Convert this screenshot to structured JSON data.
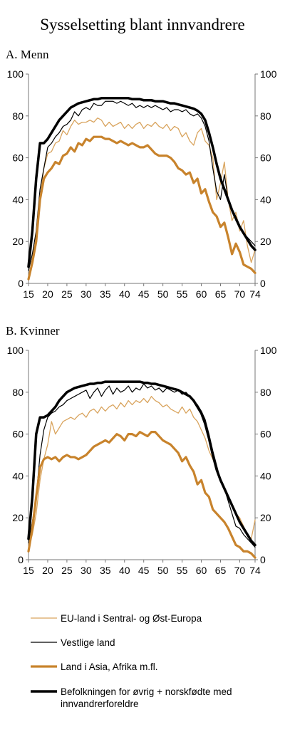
{
  "title": "Sysselsetting blant innvandrere",
  "colors": {
    "eu": "#d9a45e",
    "vest": "#000000",
    "asia": "#c8832c",
    "befolkning": "#000000"
  },
  "legend": [
    {
      "key": "eu",
      "label": "EU-land i Sentral- og Øst-Europa"
    },
    {
      "key": "vest",
      "label": "Vestlige land"
    },
    {
      "key": "asia",
      "label": "Land i Asia, Afrika m.fl."
    },
    {
      "key": "befolkning",
      "label_lines": [
        "Befolkningen for øvrig + norskfødte med",
        "innvandrerforeldre"
      ]
    }
  ],
  "chart_data": [
    {
      "type": "line",
      "title": "A.  Menn",
      "x": [
        15,
        16,
        17,
        18,
        19,
        20,
        21,
        22,
        23,
        24,
        25,
        26,
        27,
        28,
        29,
        30,
        31,
        32,
        33,
        34,
        35,
        36,
        37,
        38,
        39,
        40,
        41,
        42,
        43,
        44,
        45,
        46,
        47,
        48,
        49,
        50,
        51,
        52,
        53,
        54,
        55,
        56,
        57,
        58,
        59,
        60,
        61,
        62,
        63,
        64,
        65,
        66,
        67,
        68,
        69,
        70,
        71,
        72,
        73,
        74
      ],
      "xticks": [
        15,
        20,
        25,
        30,
        35,
        40,
        45,
        50,
        55,
        60,
        65,
        70,
        74
      ],
      "yticks": [
        0,
        20,
        40,
        60,
        80,
        100
      ],
      "ylim": [
        0,
        100
      ],
      "xlim": [
        15,
        74
      ],
      "series": [
        {
          "key": "eu",
          "name": "EU-land i Sentral- og Øst-Europa",
          "values": [
            3,
            10,
            22,
            40,
            55,
            62,
            63,
            67,
            68,
            73,
            71,
            75,
            78,
            76,
            77,
            77,
            78,
            77,
            79,
            78,
            75,
            77,
            75,
            76,
            77,
            74,
            76,
            74,
            76,
            77,
            74,
            76,
            75,
            77,
            75,
            74,
            76,
            73,
            75,
            74,
            70,
            72,
            68,
            66,
            72,
            74,
            68,
            66,
            60,
            40,
            48,
            58,
            40,
            30,
            34,
            25,
            30,
            18,
            10,
            16
          ]
        },
        {
          "key": "vest",
          "name": "Vestlige land",
          "values": [
            6,
            14,
            25,
            45,
            55,
            65,
            67,
            70,
            72,
            75,
            76,
            78,
            82,
            80,
            83,
            84,
            83,
            86,
            85,
            85,
            87,
            87,
            87,
            86,
            87,
            86,
            85,
            86,
            84,
            85,
            84,
            85,
            84,
            85,
            84,
            83,
            84,
            82,
            83,
            83,
            82,
            83,
            81,
            80,
            81,
            79,
            75,
            68,
            55,
            44,
            40,
            52,
            40,
            35,
            30,
            27,
            24,
            22,
            20,
            18
          ]
        },
        {
          "key": "asia",
          "name": "Land i Asia, Afrika m.fl.",
          "values": [
            2,
            10,
            20,
            40,
            50,
            53,
            55,
            58,
            57,
            61,
            62,
            65,
            63,
            67,
            66,
            69,
            68,
            70,
            70,
            70,
            69,
            69,
            68,
            67,
            68,
            67,
            66,
            67,
            66,
            65,
            65,
            66,
            64,
            62,
            61,
            61,
            61,
            60,
            58,
            55,
            54,
            52,
            53,
            48,
            50,
            43,
            45,
            39,
            34,
            32,
            27,
            29,
            22,
            14,
            19,
            15,
            9,
            8,
            7,
            5
          ]
        },
        {
          "key": "befolkning",
          "name": "Befolkningen for øvrig + norskfødte med innvandrerforeldre",
          "values": [
            8,
            25,
            50,
            67,
            67,
            69,
            72,
            75,
            78,
            80,
            82,
            84,
            85,
            86,
            86.5,
            87,
            87.5,
            88,
            88,
            88.5,
            88.5,
            88.5,
            88.5,
            88.5,
            88.5,
            88.5,
            88.5,
            88,
            88,
            88,
            87.5,
            87.5,
            87.5,
            87,
            87,
            87,
            86.5,
            86,
            86,
            85.5,
            85,
            84.5,
            84,
            83.5,
            82.5,
            81,
            78,
            72,
            65,
            57,
            50,
            45,
            40,
            35,
            31,
            27,
            24,
            21,
            18,
            16
          ]
        }
      ]
    },
    {
      "type": "line",
      "title": "B.  Kvinner",
      "x": [
        15,
        16,
        17,
        18,
        19,
        20,
        21,
        22,
        23,
        24,
        25,
        26,
        27,
        28,
        29,
        30,
        31,
        32,
        33,
        34,
        35,
        36,
        37,
        38,
        39,
        40,
        41,
        42,
        43,
        44,
        45,
        46,
        47,
        48,
        49,
        50,
        51,
        52,
        53,
        54,
        55,
        56,
        57,
        58,
        59,
        60,
        61,
        62,
        63,
        64,
        65,
        66,
        67,
        68,
        69,
        70,
        71,
        72,
        73,
        74
      ],
      "xticks": [
        15,
        20,
        25,
        30,
        35,
        40,
        45,
        50,
        55,
        60,
        65,
        70,
        74
      ],
      "yticks": [
        0,
        20,
        40,
        60,
        80,
        100
      ],
      "ylim": [
        0,
        100
      ],
      "xlim": [
        15,
        74
      ],
      "series": [
        {
          "key": "eu",
          "name": "EU-land i Sentral- og Øst-Europa",
          "values": [
            5,
            12,
            22,
            38,
            48,
            55,
            66,
            60,
            63,
            66,
            67,
            68,
            67,
            69,
            70,
            68,
            71,
            72,
            70,
            73,
            71,
            73,
            74,
            72,
            75,
            73,
            76,
            74,
            76,
            75,
            77,
            75,
            78,
            76,
            75,
            73,
            74,
            72,
            71,
            70,
            73,
            70,
            72,
            68,
            66,
            62,
            58,
            52,
            48,
            44,
            38,
            33,
            30,
            26,
            22,
            20,
            16,
            12,
            10,
            19
          ]
        },
        {
          "key": "vest",
          "name": "Vestlige land",
          "values": [
            8,
            18,
            30,
            50,
            62,
            68,
            70,
            71,
            73,
            74,
            76,
            77,
            78,
            79,
            80,
            81,
            77,
            80,
            82,
            78,
            81,
            83,
            79,
            82,
            80,
            81,
            83,
            80,
            82,
            81,
            84,
            82,
            83,
            81,
            82,
            80,
            82,
            81,
            80,
            81,
            79,
            80,
            78,
            76,
            74,
            71,
            67,
            60,
            52,
            45,
            38,
            34,
            28,
            22,
            16,
            15,
            12,
            10,
            8,
            6
          ]
        },
        {
          "key": "asia",
          "name": "Land i Asia, Afrika m.fl.",
          "values": [
            4,
            15,
            30,
            44,
            48,
            49,
            48,
            49,
            47,
            49,
            50,
            49,
            49,
            48,
            49,
            50,
            52,
            54,
            55,
            56,
            57,
            56,
            58,
            60,
            59,
            57,
            60,
            60,
            59,
            61,
            60,
            59,
            61,
            61,
            59,
            57,
            56,
            55,
            53,
            51,
            47,
            49,
            45,
            42,
            36,
            38,
            32,
            30,
            24,
            22,
            20,
            18,
            15,
            11,
            7,
            6,
            4,
            4,
            3,
            1
          ]
        },
        {
          "key": "befolkning",
          "name": "Befolkningen for øvrig + norskfødte med innvandrerforeldre",
          "values": [
            10,
            30,
            60,
            68,
            68,
            69,
            71,
            73,
            76,
            78,
            80,
            81,
            82,
            82.5,
            83,
            83.5,
            84,
            84,
            84.5,
            84.5,
            85,
            85,
            85,
            85,
            85,
            85,
            85,
            85,
            85,
            85,
            84.5,
            84.5,
            84,
            84,
            83.5,
            83,
            82.5,
            82,
            81.5,
            81,
            80,
            79,
            78,
            76,
            73,
            70,
            65,
            58,
            50,
            43,
            38,
            34,
            30,
            26,
            22,
            18,
            15,
            12,
            9,
            7
          ]
        }
      ]
    }
  ]
}
